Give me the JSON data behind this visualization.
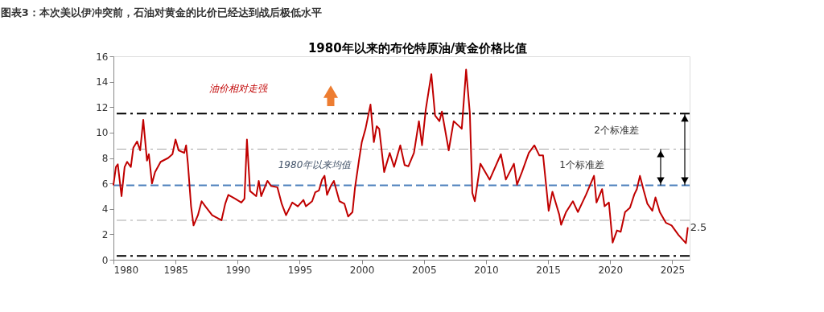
{
  "chart_data": {
    "type": "line",
    "title": "图表3：本次美以伊冲突前，石油对黄金的比价已经达到战后极低水平",
    "subtitle": "1980年以来的布伦特原油/黄金价格比值",
    "x": [
      1980,
      1980.2,
      1980.35,
      1980.65,
      1980.9,
      1981.1,
      1981.4,
      1981.6,
      1981.9,
      1982.15,
      1982.4,
      1982.7,
      1982.85,
      1983.1,
      1983.35,
      1983.8,
      1984.4,
      1984.75,
      1985.0,
      1985.25,
      1985.7,
      1985.85,
      1986.0,
      1986.25,
      1986.45,
      1986.8,
      1987.1,
      1987.4,
      1987.95,
      1988.7,
      1989.0,
      1989.25,
      1989.8,
      1990.3,
      1990.55,
      1990.75,
      1991.0,
      1991.5,
      1991.7,
      1991.9,
      1992.4,
      1992.7,
      1993.2,
      1993.55,
      1993.9,
      1994.4,
      1994.85,
      1995.3,
      1995.5,
      1996.0,
      1996.25,
      1996.55,
      1996.8,
      1997.0,
      1997.2,
      1997.5,
      1997.75,
      1998.2,
      1998.6,
      1998.9,
      1999.25,
      1999.45,
      1999.8,
      2000.0,
      2000.3,
      2000.7,
      2000.97,
      2001.2,
      2001.4,
      2001.8,
      2002.25,
      2002.6,
      2003.1,
      2003.45,
      2003.75,
      2004.2,
      2004.6,
      2004.85,
      2005.15,
      2005.6,
      2005.9,
      2006.25,
      2006.45,
      2007.0,
      2007.4,
      2008.05,
      2008.4,
      2008.7,
      2008.9,
      2009.1,
      2009.55,
      2010.3,
      2011.2,
      2011.6,
      2012.25,
      2012.5,
      2012.9,
      2013.45,
      2013.9,
      2014.3,
      2014.6,
      2015.05,
      2015.35,
      2015.9,
      2016.05,
      2016.45,
      2017.0,
      2017.4,
      2018.05,
      2018.7,
      2018.9,
      2019.35,
      2019.55,
      2019.9,
      2020.2,
      2020.55,
      2020.85,
      2021.2,
      2021.6,
      2021.95,
      2022.15,
      2022.4,
      2022.7,
      2023.0,
      2023.4,
      2023.65,
      2024.0,
      2024.5,
      2024.95,
      2025.5,
      2026.1,
      2026.25
    ],
    "series": [
      {
        "color": "#c00000",
        "values": [
          5.9,
          7.3,
          7.5,
          5.0,
          7.3,
          7.7,
          7.3,
          8.8,
          9.3,
          8.6,
          11.0,
          7.8,
          8.3,
          6.0,
          6.9,
          7.7,
          8.0,
          8.3,
          9.45,
          8.6,
          8.4,
          9.0,
          7.5,
          4.2,
          2.7,
          3.5,
          4.6,
          4.2,
          3.5,
          3.1,
          4.4,
          5.1,
          4.8,
          4.5,
          4.8,
          9.45,
          5.4,
          5.0,
          6.2,
          5.0,
          6.2,
          5.8,
          5.7,
          4.4,
          3.5,
          4.5,
          4.2,
          4.7,
          4.2,
          4.6,
          5.3,
          5.45,
          6.3,
          6.6,
          5.1,
          5.8,
          6.2,
          4.6,
          4.4,
          3.4,
          3.75,
          5.65,
          8.0,
          9.25,
          10.3,
          12.2,
          9.25,
          10.5,
          10.3,
          6.9,
          8.4,
          7.3,
          9.0,
          7.45,
          7.35,
          8.4,
          10.9,
          9.0,
          11.8,
          14.6,
          11.35,
          10.9,
          11.65,
          8.6,
          10.9,
          10.3,
          14.95,
          11.55,
          5.25,
          4.6,
          7.55,
          6.3,
          8.3,
          6.3,
          7.55,
          5.9,
          6.9,
          8.4,
          9.0,
          8.2,
          8.2,
          3.85,
          5.35,
          3.55,
          2.75,
          3.75,
          4.6,
          3.75,
          5.1,
          6.6,
          4.5,
          5.55,
          4.2,
          4.5,
          1.35,
          2.3,
          2.2,
          3.75,
          4.1,
          5.15,
          5.55,
          6.6,
          5.45,
          4.4,
          3.85,
          4.9,
          3.75,
          2.9,
          2.7,
          1.95,
          1.3,
          2.5
        ]
      }
    ],
    "xlim": [
      1980,
      2026.4
    ],
    "xticks": [
      1980,
      1985,
      1990,
      1995,
      2000,
      2005,
      2010,
      2015,
      2020,
      2025
    ],
    "ylim": [
      0,
      16
    ],
    "yticks": [
      0,
      2,
      4,
      6,
      8,
      10,
      12,
      14,
      16
    ],
    "grid": false,
    "marker": "none",
    "line_style": "solid",
    "ref_lines": [
      {
        "axis": "y",
        "value": 11.5,
        "color": "#000000",
        "line_style": "dashdot"
      },
      {
        "axis": "y",
        "value": 8.7,
        "color": "#a6a6a6",
        "line_style": "dashdot"
      },
      {
        "axis": "y",
        "value": 5.85,
        "color": "#4f81bd",
        "line_style": "dashed"
      },
      {
        "axis": "y",
        "value": 3.1,
        "color": "#a6a6a6",
        "line_style": "dashdot"
      },
      {
        "axis": "y",
        "value": 0.3,
        "color": "#000000",
        "line_style": "dashdot"
      }
    ],
    "annotations": [
      "油价相对走强",
      "1980年以来均值",
      "1个标准差",
      "2个标准差",
      {
        "text": "2.5",
        "x": 2026.25,
        "y": 2.5
      }
    ]
  }
}
